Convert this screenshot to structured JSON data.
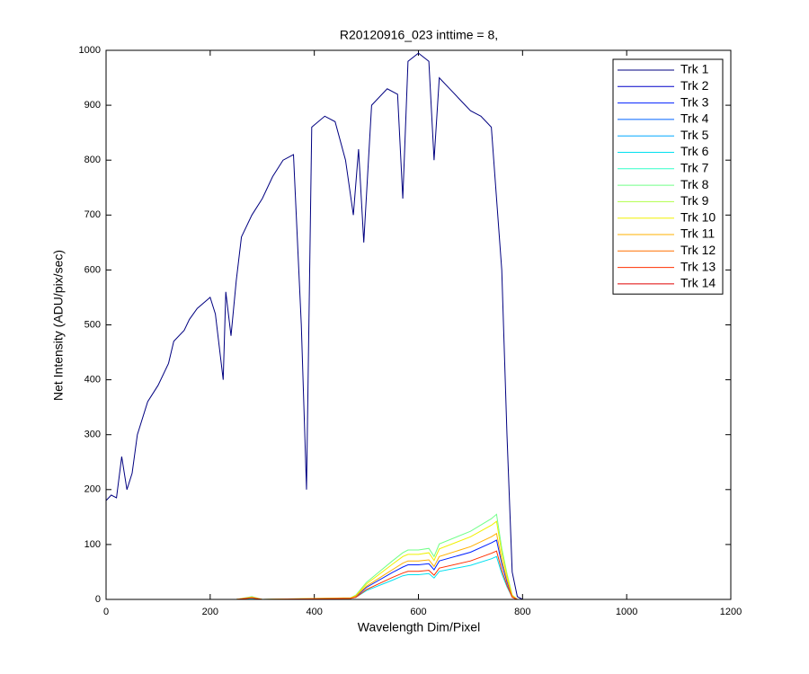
{
  "chart_data": {
    "type": "line",
    "title": "R20120916_023 inttime = 8,",
    "x_label": "Wavelength Dim/Pixel",
    "y_label": "Net Intensity (ADU/pix/sec)",
    "xlim": [
      0,
      1200
    ],
    "ylim": [
      0,
      1000
    ],
    "xticks": [
      0,
      200,
      400,
      600,
      800,
      1000,
      1200
    ],
    "yticks": [
      0,
      100,
      200,
      300,
      400,
      500,
      600,
      700,
      800,
      900,
      1000
    ],
    "grid": false,
    "legend": "upper right",
    "series": [
      {
        "name": "Trk 1",
        "color": "#000080",
        "x": [
          0,
          10,
          20,
          30,
          40,
          50,
          60,
          80,
          100,
          120,
          130,
          150,
          160,
          175,
          200,
          210,
          225,
          230,
          240,
          250,
          260,
          280,
          300,
          320,
          340,
          360,
          375,
          385,
          395,
          420,
          440,
          460,
          475,
          485,
          495,
          510,
          540,
          560,
          570,
          580,
          600,
          620,
          630,
          640,
          660,
          680,
          700,
          720,
          740,
          760,
          770,
          780,
          790,
          800,
          850,
          900,
          1023
        ],
        "values": [
          180,
          190,
          185,
          260,
          200,
          230,
          300,
          360,
          390,
          430,
          470,
          490,
          510,
          530,
          550,
          520,
          400,
          560,
          480,
          580,
          660,
          700,
          730,
          770,
          800,
          810,
          500,
          200,
          860,
          880,
          870,
          800,
          700,
          820,
          650,
          900,
          930,
          920,
          730,
          980,
          995,
          980,
          800,
          950,
          930,
          910,
          890,
          880,
          860,
          600,
          300,
          50,
          5,
          0,
          0,
          0,
          0
        ]
      },
      {
        "name": "Trk 2",
        "color": "#0000c8",
        "x": [
          0,
          1023
        ],
        "values": [
          0,
          0
        ]
      },
      {
        "name": "Trk 3",
        "color": "#0020ff",
        "x": [
          0,
          250,
          280,
          300,
          470,
          480,
          500,
          550,
          570,
          580,
          600,
          620,
          630,
          640,
          700,
          740,
          750,
          760,
          770,
          780,
          790,
          1023
        ],
        "values": [
          0,
          0,
          3,
          0,
          2,
          5,
          22,
          49,
          59,
          63,
          63,
          65,
          54,
          70,
          86,
          103,
          108,
          65,
          32,
          5,
          0,
          0
        ]
      },
      {
        "name": "Trk 4",
        "color": "#0064ff",
        "x": [
          0,
          1023
        ],
        "values": [
          0,
          0
        ]
      },
      {
        "name": "Trk 5",
        "color": "#00a8ff",
        "x": [
          0,
          1023
        ],
        "values": [
          0,
          0
        ]
      },
      {
        "name": "Trk 6",
        "color": "#00e0f0",
        "x": [
          0,
          250,
          280,
          300,
          470,
          480,
          500,
          550,
          570,
          580,
          600,
          620,
          630,
          640,
          700,
          740,
          750,
          760,
          770,
          780,
          790,
          1023
        ],
        "values": [
          0,
          0,
          2,
          0,
          2,
          4,
          16,
          35,
          43,
          45,
          45,
          47,
          39,
          51,
          62,
          74,
          78,
          47,
          23,
          4,
          0,
          0
        ]
      },
      {
        "name": "Trk 7",
        "color": "#30ffc8",
        "x": [
          0,
          1023
        ],
        "values": [
          0,
          0
        ]
      },
      {
        "name": "Trk 8",
        "color": "#70ff88",
        "x": [
          0,
          250,
          280,
          300,
          470,
          480,
          500,
          550,
          570,
          580,
          600,
          620,
          630,
          640,
          700,
          740,
          750,
          760,
          770,
          780,
          790,
          1023
        ],
        "values": [
          0,
          0,
          5,
          0,
          3,
          8,
          31,
          70,
          85,
          90,
          90,
          93,
          78,
          101,
          124,
          147,
          155,
          93,
          47,
          8,
          0,
          0
        ]
      },
      {
        "name": "Trk 9",
        "color": "#b0ff48",
        "x": [
          0,
          1023
        ],
        "values": [
          0,
          0
        ]
      },
      {
        "name": "Trk 10",
        "color": "#f0f000",
        "x": [
          0,
          250,
          280,
          300,
          470,
          480,
          500,
          550,
          570,
          580,
          600,
          620,
          630,
          640,
          700,
          740,
          750,
          760,
          770,
          780,
          790,
          1023
        ],
        "values": [
          0,
          0,
          4,
          0,
          3,
          7,
          28,
          64,
          78,
          82,
          82,
          85,
          71,
          92,
          114,
          135,
          142,
          85,
          43,
          7,
          0,
          0
        ]
      },
      {
        "name": "Trk 11",
        "color": "#ffb000",
        "x": [
          0,
          250,
          280,
          300,
          470,
          480,
          500,
          550,
          570,
          580,
          600,
          620,
          630,
          640,
          700,
          740,
          750,
          760,
          770,
          780,
          790,
          1023
        ],
        "values": [
          0,
          0,
          4,
          0,
          2,
          6,
          24,
          54,
          66,
          70,
          70,
          72,
          60,
          78,
          96,
          114,
          120,
          72,
          36,
          6,
          0,
          0
        ]
      },
      {
        "name": "Trk 12",
        "color": "#ff7000",
        "x": [
          0,
          1023
        ],
        "values": [
          0,
          0
        ]
      },
      {
        "name": "Trk 13",
        "color": "#ff3000",
        "x": [
          0,
          250,
          280,
          300,
          470,
          480,
          500,
          550,
          570,
          580,
          600,
          620,
          630,
          640,
          700,
          740,
          750,
          760,
          770,
          780,
          790,
          1023
        ],
        "values": [
          0,
          0,
          3,
          0,
          2,
          4,
          18,
          40,
          48,
          51,
          51,
          53,
          44,
          57,
          70,
          84,
          88,
          53,
          26,
          4,
          0,
          0
        ]
      },
      {
        "name": "Trk 14",
        "color": "#e00000",
        "x": [
          0,
          1023
        ],
        "values": [
          0,
          0
        ]
      }
    ]
  }
}
